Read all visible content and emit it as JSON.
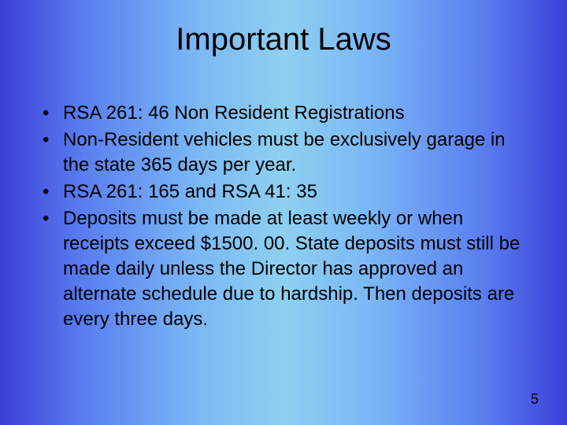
{
  "slide": {
    "title": "Important Laws",
    "bullets": [
      "RSA 261: 46 Non Resident Registrations",
      "Non-Resident vehicles must be exclusively garage in the state 365 days per year.",
      "RSA 261: 165 and RSA 41: 35",
      "Deposits must be made at least weekly or when receipts exceed $1500. 00. State deposits must still be made daily unless the Director has approved an alternate schedule due to hardship. Then deposits are every three days."
    ],
    "page_number": "5",
    "background_gradient": [
      "#3a3fd8",
      "#5a7ff0",
      "#7bb8f5",
      "#8ed0f0",
      "#7bb8f5",
      "#5a7ff0",
      "#3a3fd8"
    ],
    "title_fontsize": 40,
    "body_fontsize": 24,
    "text_color": "#000000",
    "font_family": "Arial"
  }
}
